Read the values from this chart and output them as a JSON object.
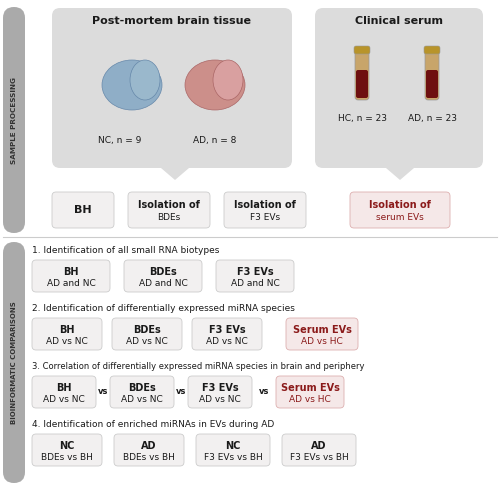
{
  "bg_color": "#ffffff",
  "sidebar_color": "#aaaaaa",
  "box_color_light": "#f2f0f0",
  "box_color_pink": "#f5e8e8",
  "callout_color": "#dcdcdc",
  "red_text_color": "#8b1a1a",
  "dark_text_color": "#1a1a1a",
  "title_top_left": "Post-mortem brain tissue",
  "title_top_right": "Clinical serum",
  "label_sample": "SAMPLE PROCESSING",
  "label_bio": "BIOINFORMATIC COMPARISONS",
  "nc_brain_label": "NC, n = 9",
  "ad_brain_label": "AD, n = 8",
  "hc_serum_label": "HC, n = 23",
  "ad_serum_label": "AD, n = 23",
  "section1_title": "1. Identification of all small RNA biotypes",
  "section2_title": "2. Identification of differentially expressed miRNA species",
  "section3_title": "3. Correlation of differentially expressed miRNA species in brain and periphery",
  "section4_title": "4. Identification of enriched miRNAs in EVs during AD"
}
